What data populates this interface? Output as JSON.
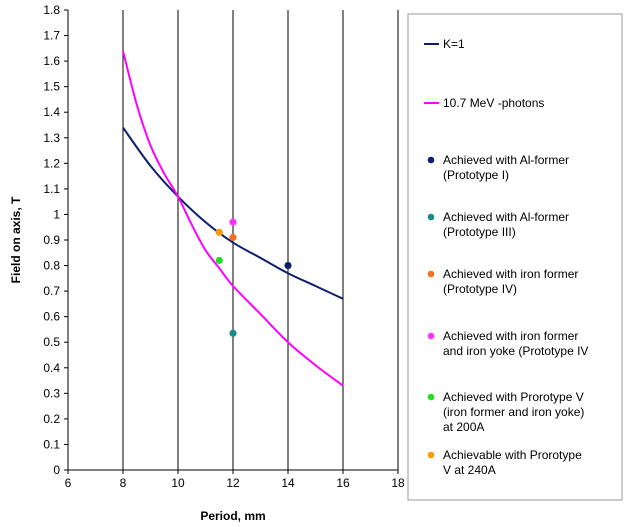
{
  "chart_data": {
    "type": "scatter",
    "xlabel": "Period, mm",
    "ylabel": "Field on axis, T",
    "xlim": [
      6,
      18
    ],
    "ylim": [
      0,
      1.8
    ],
    "x_ticks": [
      6,
      8,
      10,
      12,
      14,
      16,
      18
    ],
    "y_ticks": [
      0,
      0.1,
      0.2,
      0.3,
      0.4,
      0.5,
      0.6,
      0.7,
      0.8,
      0.9,
      1,
      1.1,
      1.2,
      1.3,
      1.4,
      1.5,
      1.6,
      1.7,
      1.8
    ],
    "grid": "vertical",
    "legend_position": "right",
    "series": [
      {
        "name": "K=1",
        "kind": "line",
        "color": "#0b1f6e",
        "x": [
          8,
          9,
          10,
          11,
          12,
          13,
          14,
          15,
          16
        ],
        "y": [
          1.34,
          1.19,
          1.07,
          0.97,
          0.89,
          0.83,
          0.77,
          0.72,
          0.67
        ]
      },
      {
        "name": "10.7 MeV -photons",
        "kind": "line",
        "color": "#ff00ff",
        "x": [
          8,
          8.5,
          9,
          9.5,
          10,
          10.5,
          11,
          11.5,
          12,
          13,
          14,
          15,
          16
        ],
        "y": [
          1.64,
          1.43,
          1.27,
          1.16,
          1.07,
          0.96,
          0.86,
          0.79,
          0.72,
          0.61,
          0.5,
          0.41,
          0.33
        ]
      },
      {
        "name": [
          "Achieved with Al-former",
          "(Prototype I)"
        ],
        "kind": "point",
        "color": "#0b1f6e",
        "x": [
          14
        ],
        "y": [
          0.8
        ]
      },
      {
        "name": [
          "Achieved with Al-former",
          "(Prototype III)"
        ],
        "kind": "point",
        "color": "#1a8a8a",
        "x": [
          12
        ],
        "y": [
          0.535
        ]
      },
      {
        "name": [
          "Achieved with iron former",
          "(Prototype IV)"
        ],
        "kind": "point",
        "color": "#f07020",
        "x": [
          12
        ],
        "y": [
          0.91
        ]
      },
      {
        "name": [
          "Achieved with iron former",
          "and iron yoke (Prototype IV"
        ],
        "kind": "point",
        "color": "#ff33ff",
        "x": [
          12
        ],
        "y": [
          0.97
        ]
      },
      {
        "name": [
          "Achieved with Prorotype V",
          "(iron former and iron yoke)",
          "at 200A"
        ],
        "kind": "point",
        "color": "#22dd22",
        "x": [
          11.5
        ],
        "y": [
          0.82
        ]
      },
      {
        "name": [
          "Achievable with Prorotype",
          "V at 240A"
        ],
        "kind": "point",
        "color": "#ff9900",
        "x": [
          11.5
        ],
        "y": [
          0.93
        ]
      }
    ]
  }
}
